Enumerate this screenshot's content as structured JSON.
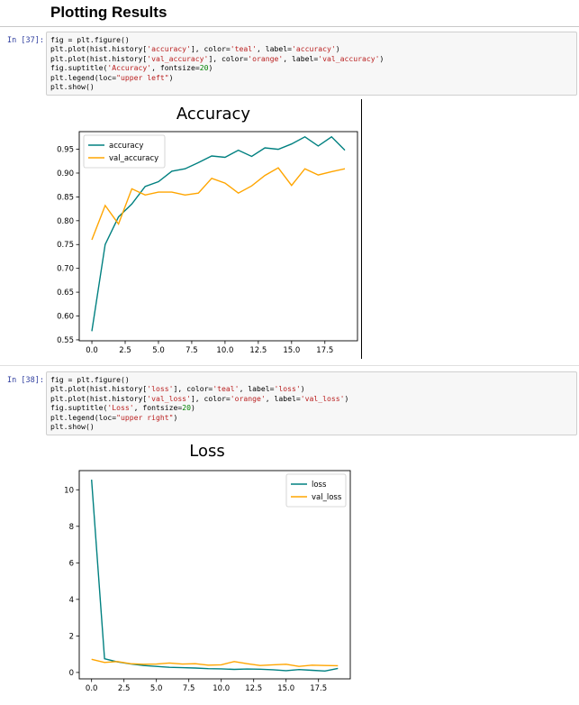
{
  "section_heading": "Plotting Results",
  "cells": [
    {
      "prompt": "In [37]:",
      "code": [
        [
          {
            "t": "fig = plt.figure()"
          }
        ],
        [
          {
            "t": "plt.plot(hist.history["
          },
          {
            "t": "'accuracy'",
            "c": "str"
          },
          {
            "t": "], color="
          },
          {
            "t": "'teal'",
            "c": "str"
          },
          {
            "t": ", label="
          },
          {
            "t": "'accuracy'",
            "c": "str"
          },
          {
            "t": ")"
          }
        ],
        [
          {
            "t": "plt.plot(hist.history["
          },
          {
            "t": "'val_accuracy'",
            "c": "str"
          },
          {
            "t": "], color="
          },
          {
            "t": "'orange'",
            "c": "str"
          },
          {
            "t": ", label="
          },
          {
            "t": "'val_accuracy'",
            "c": "str"
          },
          {
            "t": ")"
          }
        ],
        [
          {
            "t": "fig.suptitle("
          },
          {
            "t": "'Accuracy'",
            "c": "str"
          },
          {
            "t": ", fontsize="
          },
          {
            "t": "20",
            "c": "num"
          },
          {
            "t": ")"
          }
        ],
        [
          {
            "t": "plt.legend(loc="
          },
          {
            "t": "\"upper left\"",
            "c": "str"
          },
          {
            "t": ")"
          }
        ],
        [
          {
            "t": "plt.show()"
          }
        ]
      ]
    },
    {
      "prompt": "In [38]:",
      "code": [
        [
          {
            "t": "fig = plt.figure()"
          }
        ],
        [
          {
            "t": "plt.plot(hist.history["
          },
          {
            "t": "'loss'",
            "c": "str"
          },
          {
            "t": "], color="
          },
          {
            "t": "'teal'",
            "c": "str"
          },
          {
            "t": ", label="
          },
          {
            "t": "'loss'",
            "c": "str"
          },
          {
            "t": ")"
          }
        ],
        [
          {
            "t": "plt.plot(hist.history["
          },
          {
            "t": "'val_loss'",
            "c": "str"
          },
          {
            "t": "], color="
          },
          {
            "t": "'orange'",
            "c": "str"
          },
          {
            "t": ", label="
          },
          {
            "t": "'val_loss'",
            "c": "str"
          },
          {
            "t": ")"
          }
        ],
        [
          {
            "t": "fig.suptitle("
          },
          {
            "t": "'Loss'",
            "c": "str"
          },
          {
            "t": ", fontsize="
          },
          {
            "t": "20",
            "c": "num"
          },
          {
            "t": ")"
          }
        ],
        [
          {
            "t": "plt.legend(loc="
          },
          {
            "t": "\"upper right\"",
            "c": "str"
          },
          {
            "t": ")"
          }
        ],
        [
          {
            "t": "plt.show()"
          }
        ]
      ]
    }
  ],
  "chart_data": [
    {
      "type": "line",
      "title": "Accuracy",
      "x": [
        0,
        1,
        2,
        3,
        4,
        5,
        6,
        7,
        8,
        9,
        10,
        11,
        12,
        13,
        14,
        15,
        16,
        17,
        18,
        19
      ],
      "series": [
        {
          "name": "accuracy",
          "color": "#008080",
          "values": [
            0.568,
            0.75,
            0.808,
            0.835,
            0.872,
            0.882,
            0.904,
            0.909,
            0.922,
            0.936,
            0.933,
            0.948,
            0.935,
            0.953,
            0.95,
            0.961,
            0.976,
            0.957,
            0.976,
            0.948
          ]
        },
        {
          "name": "val_accuracy",
          "color": "#FFA500",
          "values": [
            0.76,
            0.832,
            0.793,
            0.867,
            0.854,
            0.86,
            0.86,
            0.854,
            0.858,
            0.889,
            0.879,
            0.858,
            0.873,
            0.895,
            0.911,
            0.874,
            0.909,
            0.896,
            0.903,
            0.909
          ]
        }
      ],
      "xlim": [
        -0.95,
        19.95
      ],
      "ylim": [
        0.548,
        0.987
      ],
      "xticks": [
        0.0,
        2.5,
        5.0,
        7.5,
        10.0,
        12.5,
        15.0,
        17.5
      ],
      "xtick_labels": [
        "0.0",
        "2.5",
        "5.0",
        "7.5",
        "10.0",
        "12.5",
        "15.0",
        "17.5"
      ],
      "yticks": [
        0.55,
        0.6,
        0.65,
        0.7,
        0.75,
        0.8,
        0.85,
        0.9,
        0.95
      ],
      "ytick_labels": [
        "0.55",
        "0.60",
        "0.65",
        "0.70",
        "0.75",
        "0.80",
        "0.85",
        "0.90",
        "0.95"
      ],
      "legend": "upper-left",
      "grid": false
    },
    {
      "type": "line",
      "title": "Loss",
      "x": [
        0,
        1,
        2,
        3,
        4,
        5,
        6,
        7,
        8,
        9,
        10,
        11,
        12,
        13,
        14,
        15,
        16,
        17,
        18,
        19
      ],
      "series": [
        {
          "name": "loss",
          "color": "#008080",
          "values": [
            10.55,
            0.75,
            0.58,
            0.47,
            0.38,
            0.33,
            0.28,
            0.26,
            0.24,
            0.21,
            0.2,
            0.17,
            0.19,
            0.18,
            0.15,
            0.1,
            0.16,
            0.12,
            0.08,
            0.22
          ]
        },
        {
          "name": "val_loss",
          "color": "#FFA500",
          "values": [
            0.72,
            0.55,
            0.6,
            0.48,
            0.45,
            0.46,
            0.52,
            0.46,
            0.48,
            0.4,
            0.42,
            0.6,
            0.48,
            0.38,
            0.42,
            0.45,
            0.33,
            0.4,
            0.38,
            0.37
          ]
        }
      ],
      "xlim": [
        -0.95,
        19.95
      ],
      "ylim": [
        -0.35,
        11.05
      ],
      "xticks": [
        0.0,
        2.5,
        5.0,
        7.5,
        10.0,
        12.5,
        15.0,
        17.5
      ],
      "xtick_labels": [
        "0.0",
        "2.5",
        "5.0",
        "7.5",
        "10.0",
        "12.5",
        "15.0",
        "17.5"
      ],
      "yticks": [
        0,
        2,
        4,
        6,
        8,
        10
      ],
      "ytick_labels": [
        "0",
        "2",
        "4",
        "6",
        "8",
        "10"
      ],
      "legend": "upper-right",
      "grid": false
    }
  ]
}
